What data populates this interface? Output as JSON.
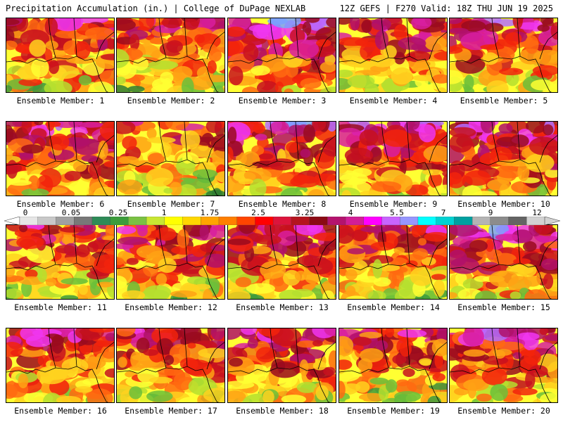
{
  "header": {
    "left": "Precipitation Accumulation (in.) | College of DuPage NEXLAB",
    "right": "12Z GEFS | F270 Valid: 18Z THU JUN 19 2025"
  },
  "colorbar": {
    "tick_labels": [
      "0",
      "0.05",
      "0.25",
      "1",
      "1.75",
      "2.5",
      "3.25",
      "4",
      "5.5",
      "7",
      "9",
      "12"
    ],
    "colors": [
      "#e6e6e6",
      "#c8c8c8",
      "#a0a0a0",
      "#787878",
      "#2e8b57",
      "#3c9c3c",
      "#7ac143",
      "#c8e632",
      "#ffff00",
      "#ffd700",
      "#ffa500",
      "#ff7f00",
      "#ff4500",
      "#ff0000",
      "#dc143c",
      "#b4141e",
      "#8b0a14",
      "#b4136e",
      "#d21e96",
      "#ff00ff",
      "#c864ff",
      "#9696ff",
      "#00ffff",
      "#00d2d2",
      "#00a0a0",
      "#b4b4b4",
      "#8c8c8c",
      "#646464",
      "#d2d2d2"
    ]
  },
  "panels": [
    {
      "label": "Ensemble Member: 1",
      "bias": 0.55
    },
    {
      "label": "Ensemble Member: 2",
      "bias": 0.45
    },
    {
      "label": "Ensemble Member: 3",
      "bias": 0.8
    },
    {
      "label": "Ensemble Member: 4",
      "bias": 0.55
    },
    {
      "label": "Ensemble Member: 5",
      "bias": 0.65
    },
    {
      "label": "Ensemble Member: 6",
      "bias": 0.65
    },
    {
      "label": "Ensemble Member: 7",
      "bias": 0.4
    },
    {
      "label": "Ensemble Member: 8",
      "bias": 0.65
    },
    {
      "label": "Ensemble Member: 9",
      "bias": 0.7
    },
    {
      "label": "Ensemble Member: 10",
      "bias": 0.75
    },
    {
      "label": "Ensemble Member: 11",
      "bias": 0.5
    },
    {
      "label": "Ensemble Member: 12",
      "bias": 0.55
    },
    {
      "label": "Ensemble Member: 13",
      "bias": 0.5
    },
    {
      "label": "Ensemble Member: 14",
      "bias": 0.5
    },
    {
      "label": "Ensemble Member: 15",
      "bias": 0.75
    },
    {
      "label": "Ensemble Member: 16",
      "bias": 0.55
    },
    {
      "label": "Ensemble Member: 17",
      "bias": 0.5
    },
    {
      "label": "Ensemble Member: 18",
      "bias": 0.6
    },
    {
      "label": "Ensemble Member: 19",
      "bias": 0.45
    },
    {
      "label": "Ensemble Member: 20",
      "bias": 0.6
    }
  ]
}
